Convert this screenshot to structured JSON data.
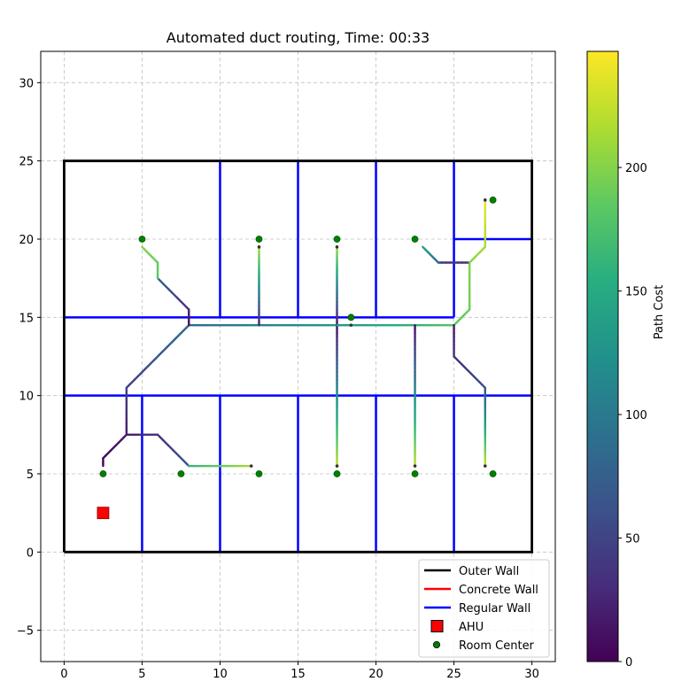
{
  "chart_data": {
    "type": "line",
    "title": "Automated duct routing, Time: 00:33",
    "xlim": [
      -1.5,
      31.5
    ],
    "ylim": [
      -7,
      32
    ],
    "xticks": [
      0,
      5,
      10,
      15,
      20,
      25,
      30
    ],
    "yticks": [
      -5,
      0,
      5,
      10,
      15,
      20,
      25,
      30
    ],
    "grid": true,
    "legend_position": "lower right",
    "legend": [
      {
        "label": "Outer Wall",
        "kind": "line",
        "color": "#000000"
      },
      {
        "label": "Concrete Wall",
        "kind": "line",
        "color": "#ff0000"
      },
      {
        "label": "Regular Wall",
        "kind": "line",
        "color": "#0000ff"
      },
      {
        "label": "AHU",
        "kind": "square",
        "color": "#ff0000"
      },
      {
        "label": "Room Center",
        "kind": "circle",
        "color": "#008000"
      }
    ],
    "colorbar": {
      "label": "Path Cost",
      "colormap": "viridis",
      "range": [
        0,
        247
      ],
      "ticks": [
        0,
        50,
        100,
        150,
        200
      ]
    },
    "outer_wall": [
      [
        0,
        0
      ],
      [
        30,
        0
      ],
      [
        30,
        25
      ],
      [
        0,
        25
      ],
      [
        0,
        0
      ]
    ],
    "regular_walls": [
      [
        [
          0,
          15
        ],
        [
          25,
          15
        ]
      ],
      [
        [
          0,
          10
        ],
        [
          30,
          10
        ]
      ],
      [
        [
          25,
          20
        ],
        [
          30,
          20
        ]
      ],
      [
        [
          10,
          15
        ],
        [
          10,
          25
        ]
      ],
      [
        [
          15,
          15
        ],
        [
          15,
          25
        ]
      ],
      [
        [
          20,
          15
        ],
        [
          20,
          25
        ]
      ],
      [
        [
          25,
          15
        ],
        [
          25,
          25
        ]
      ],
      [
        [
          5,
          0
        ],
        [
          5,
          10
        ]
      ],
      [
        [
          10,
          0
        ],
        [
          10,
          10
        ]
      ],
      [
        [
          15,
          0
        ],
        [
          15,
          10
        ]
      ],
      [
        [
          20,
          0
        ],
        [
          20,
          10
        ]
      ],
      [
        [
          25,
          0
        ],
        [
          25,
          10
        ]
      ]
    ],
    "ahu": [
      2.5,
      2.5
    ],
    "room_centers": [
      [
        5,
        20
      ],
      [
        12.5,
        20
      ],
      [
        17.5,
        20
      ],
      [
        22.5,
        20
      ],
      [
        27.5,
        22.5
      ],
      [
        18.4,
        15
      ],
      [
        2.5,
        5
      ],
      [
        7.5,
        5
      ],
      [
        12.5,
        5
      ],
      [
        17.5,
        5
      ],
      [
        22.5,
        5
      ],
      [
        27.5,
        5
      ]
    ],
    "duct_paths": [
      {
        "points": [
          [
            2.5,
            5.5
          ],
          [
            2.5,
            6
          ],
          [
            3.5,
            7
          ],
          [
            4,
            7.5
          ]
        ],
        "costs": [
          0,
          20
        ]
      },
      {
        "points": [
          [
            4,
            7.5
          ],
          [
            6,
            7.5
          ]
        ],
        "costs": [
          20,
          35
        ]
      },
      {
        "points": [
          [
            6,
            7.5
          ],
          [
            7,
            6.5
          ],
          [
            8,
            5.5
          ]
        ],
        "costs": [
          35,
          65
        ]
      },
      {
        "points": [
          [
            8,
            5.5
          ],
          [
            10,
            5.5
          ],
          [
            12,
            5.5
          ]
        ],
        "costs": [
          160,
          215
        ]
      },
      {
        "points": [
          [
            4,
            7.5
          ],
          [
            4,
            10.5
          ]
        ],
        "costs": [
          20,
          45
        ]
      },
      {
        "points": [
          [
            4,
            10.5
          ],
          [
            8,
            14.5
          ]
        ],
        "costs": [
          45,
          85
        ]
      },
      {
        "points": [
          [
            8,
            14.5
          ],
          [
            12.5,
            14.5
          ]
        ],
        "costs": [
          85,
          110
        ]
      },
      {
        "points": [
          [
            8,
            14.5
          ],
          [
            8,
            15.5
          ]
        ],
        "costs": [
          10,
          20
        ]
      },
      {
        "points": [
          [
            8,
            15.5
          ],
          [
            6,
            17.5
          ]
        ],
        "costs": [
          30,
          80
        ]
      },
      {
        "points": [
          [
            6,
            17.5
          ],
          [
            6,
            18.5
          ],
          [
            5,
            19.5
          ]
        ],
        "costs": [
          180,
          200
        ]
      },
      {
        "points": [
          [
            12.5,
            14.5
          ],
          [
            17.5,
            14.5
          ]
        ],
        "costs": [
          110,
          130
        ]
      },
      {
        "points": [
          [
            12.5,
            14.5
          ],
          [
            12.5,
            19.5
          ]
        ],
        "costs": [
          20,
          215
        ]
      },
      {
        "points": [
          [
            17.5,
            14.5
          ],
          [
            17.5,
            19.5
          ]
        ],
        "costs": [
          10,
          210
        ]
      },
      {
        "points": [
          [
            17.5,
            14.5
          ],
          [
            17.5,
            5.5
          ]
        ],
        "costs": [
          10,
          220
        ]
      },
      {
        "points": [
          [
            17.5,
            14.5
          ],
          [
            22.5,
            14.5
          ]
        ],
        "costs": [
          130,
          160
        ]
      },
      {
        "points": [
          [
            22.5,
            14.5
          ],
          [
            25,
            14.5
          ]
        ],
        "costs": [
          160,
          180
        ]
      },
      {
        "points": [
          [
            22.5,
            14.5
          ],
          [
            22.5,
            5.5
          ]
        ],
        "costs": [
          10,
          220
        ]
      },
      {
        "points": [
          [
            25,
            14.5
          ],
          [
            26,
            15.5
          ]
        ],
        "costs": [
          180,
          190
        ]
      },
      {
        "points": [
          [
            26,
            15.5
          ],
          [
            26,
            18.5
          ]
        ],
        "costs": [
          190,
          200
        ]
      },
      {
        "points": [
          [
            26,
            18.5
          ],
          [
            24,
            18.5
          ]
        ],
        "costs": [
          30,
          40
        ]
      },
      {
        "points": [
          [
            24,
            18.5
          ],
          [
            23,
            19.5
          ]
        ],
        "costs": [
          80,
          140
        ]
      },
      {
        "points": [
          [
            26,
            18.5
          ],
          [
            27,
            19.5
          ],
          [
            27,
            22.5
          ]
        ],
        "costs": [
          200,
          240
        ]
      },
      {
        "points": [
          [
            25,
            14.5
          ],
          [
            25,
            12.5
          ],
          [
            27,
            10.5
          ]
        ],
        "costs": [
          15,
          60
        ]
      },
      {
        "points": [
          [
            27,
            10.5
          ],
          [
            27,
            5.5
          ]
        ],
        "costs": [
          60,
          225
        ]
      }
    ],
    "path_ends": [
      [
        18.4,
        14.5
      ],
      [
        27,
        22.5
      ],
      [
        12,
        5.5
      ],
      [
        17.5,
        5.5
      ],
      [
        22.5,
        5.5
      ],
      [
        27,
        5.5
      ],
      [
        12.5,
        19.5
      ],
      [
        17.5,
        19.5
      ]
    ]
  }
}
